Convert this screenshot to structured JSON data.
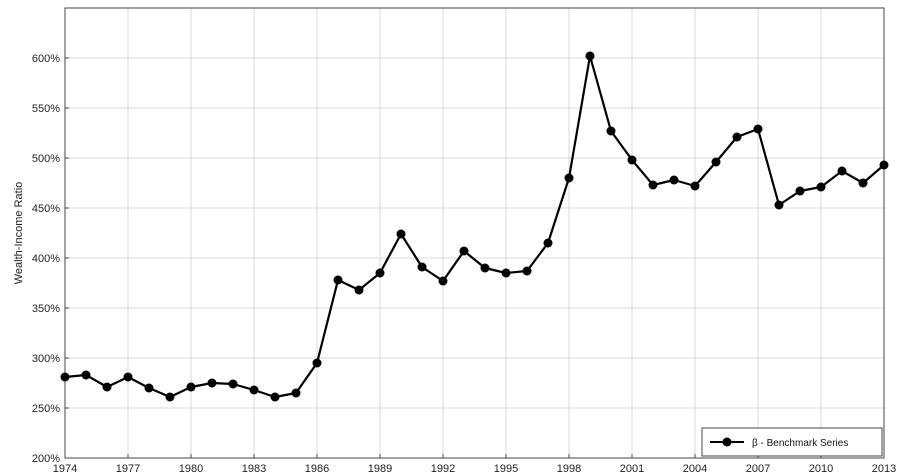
{
  "chart_data": {
    "type": "line",
    "title": "",
    "xlabel": "",
    "ylabel": "Wealth-Income Ratio",
    "x": [
      1974,
      1975,
      1976,
      1977,
      1978,
      1979,
      1980,
      1981,
      1982,
      1983,
      1984,
      1985,
      1986,
      1987,
      1988,
      1989,
      1990,
      1991,
      1992,
      1993,
      1994,
      1995,
      1996,
      1997,
      1998,
      1999,
      2000,
      2001,
      2002,
      2003,
      2004,
      2005,
      2006,
      2007,
      2008,
      2009,
      2010,
      2011,
      2012,
      2013
    ],
    "series": [
      {
        "name": "β - Benchmark Series",
        "values": [
          281,
          283,
          271,
          281,
          270,
          261,
          271,
          275,
          274,
          268,
          261,
          265,
          295,
          378,
          368,
          385,
          424,
          391,
          377,
          407,
          390,
          385,
          387,
          415,
          480,
          602,
          527,
          498,
          473,
          478,
          472,
          496,
          521,
          529,
          453,
          467,
          471,
          487,
          475,
          493
        ]
      }
    ],
    "xlim": [
      1974,
      2013
    ],
    "ylim": [
      200,
      650
    ],
    "xticks": [
      1974,
      1977,
      1980,
      1983,
      1986,
      1989,
      1992,
      1995,
      1998,
      2001,
      2004,
      2007,
      2010,
      2013
    ],
    "yticks": [
      200,
      250,
      300,
      350,
      400,
      450,
      500,
      550,
      600
    ],
    "ytick_suffix": "%",
    "grid": true,
    "legend_position": "bottom-right",
    "colors": {
      "line": "#000000",
      "grid": "#d9d9d9",
      "frame": "#444444"
    }
  }
}
